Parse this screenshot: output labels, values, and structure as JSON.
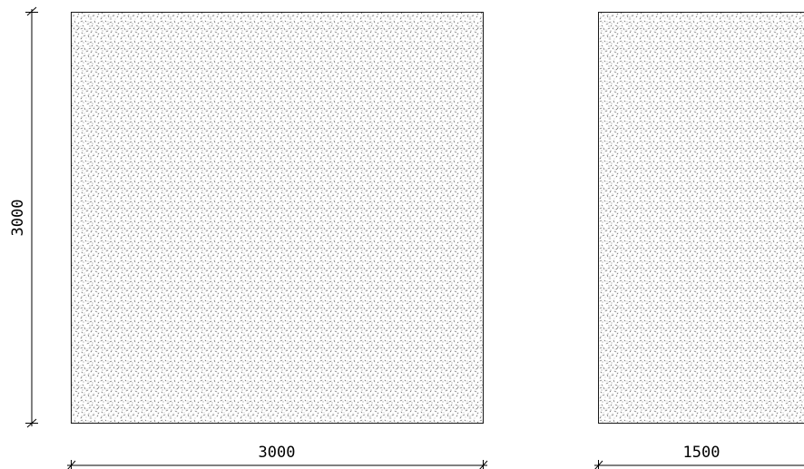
{
  "drawing": {
    "panels": [
      {
        "id": "left",
        "fill_pattern": "stipple",
        "width_dimension": "3000",
        "height_dimension": "3000"
      },
      {
        "id": "right",
        "fill_pattern": "stipple",
        "width_dimension": "1500"
      }
    ],
    "colors": {
      "background": "#ffffff",
      "line": "#000000",
      "speckle": "#555555"
    }
  }
}
